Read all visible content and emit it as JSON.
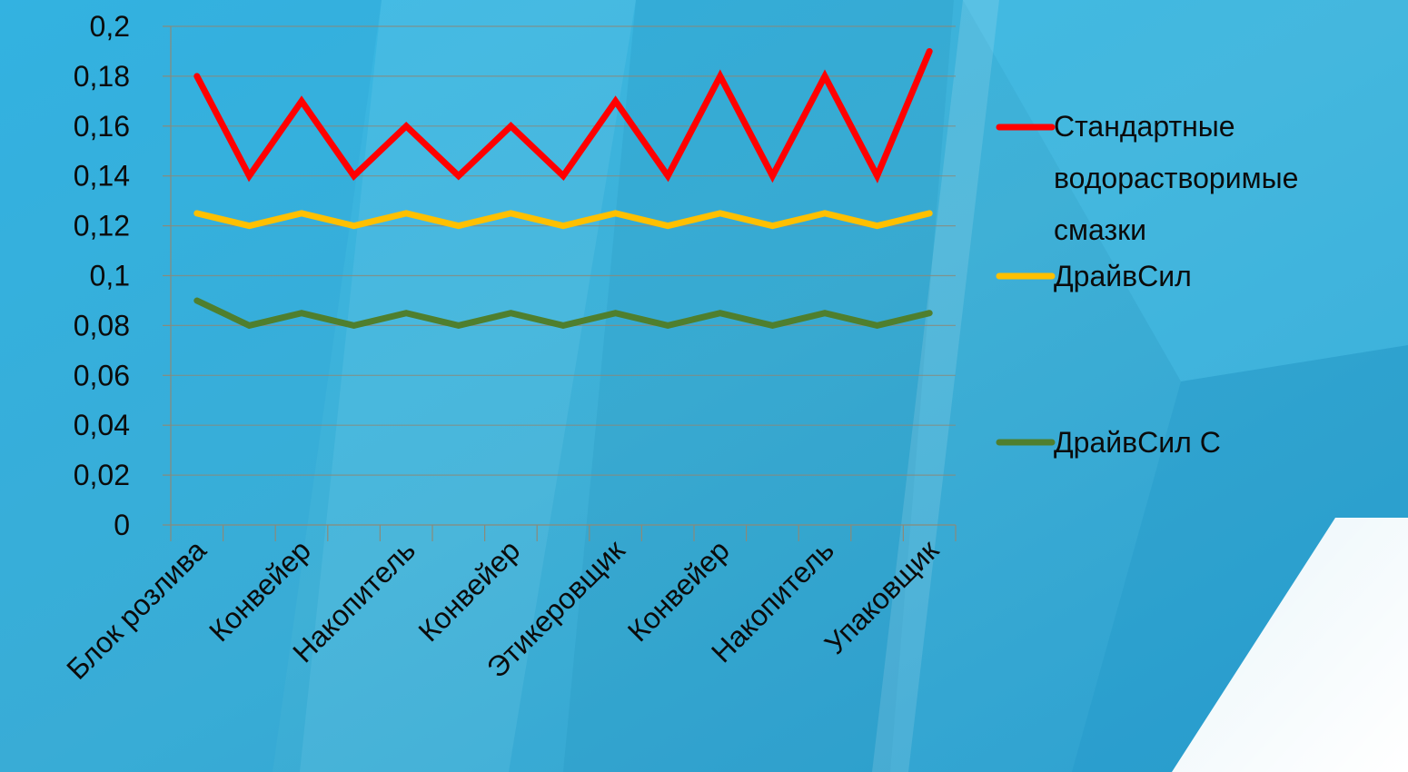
{
  "chart_data": {
    "type": "line",
    "title": "",
    "xlabel": "",
    "ylabel": "",
    "ylim": [
      0,
      0.2
    ],
    "y_ticks": [
      "0",
      "0,02",
      "0,04",
      "0,06",
      "0,08",
      "0,1",
      "0,12",
      "0,14",
      "0,16",
      "0,18",
      "0,2"
    ],
    "x_count": 15,
    "x_labels": [
      {
        "index": 0,
        "label": "Блок розлива"
      },
      {
        "index": 2,
        "label": "Конвейер"
      },
      {
        "index": 4,
        "label": "Накопитель"
      },
      {
        "index": 6,
        "label": "Конвейер"
      },
      {
        "index": 8,
        "label": "Этикеровщик"
      },
      {
        "index": 10,
        "label": "Конвейер"
      },
      {
        "index": 12,
        "label": "Накопитель"
      },
      {
        "index": 14,
        "label": "Упаковщик"
      }
    ],
    "grid": true,
    "legend_position": "right",
    "series": [
      {
        "name": "Стандартные водорастворимые смазки",
        "name_lines": [
          "Стандартные",
          "водорастворимые",
          "смазки"
        ],
        "color": "#ff0000",
        "values": [
          0.18,
          0.14,
          0.17,
          0.14,
          0.16,
          0.14,
          0.16,
          0.14,
          0.17,
          0.14,
          0.18,
          0.14,
          0.18,
          0.14,
          0.19
        ]
      },
      {
        "name": "ДрайвСил",
        "name_lines": [
          "ДрайвСил"
        ],
        "color": "#ffc000",
        "values": [
          0.125,
          0.12,
          0.125,
          0.12,
          0.125,
          0.12,
          0.125,
          0.12,
          0.125,
          0.12,
          0.125,
          0.12,
          0.125,
          0.12,
          0.125
        ]
      },
      {
        "name": "ДрайвСил С",
        "name_lines": [
          "ДрайвСил С"
        ],
        "color": "#4f7f2e",
        "values": [
          0.09,
          0.08,
          0.085,
          0.08,
          0.085,
          0.08,
          0.085,
          0.08,
          0.085,
          0.08,
          0.085,
          0.08,
          0.085,
          0.08,
          0.085
        ]
      }
    ]
  }
}
